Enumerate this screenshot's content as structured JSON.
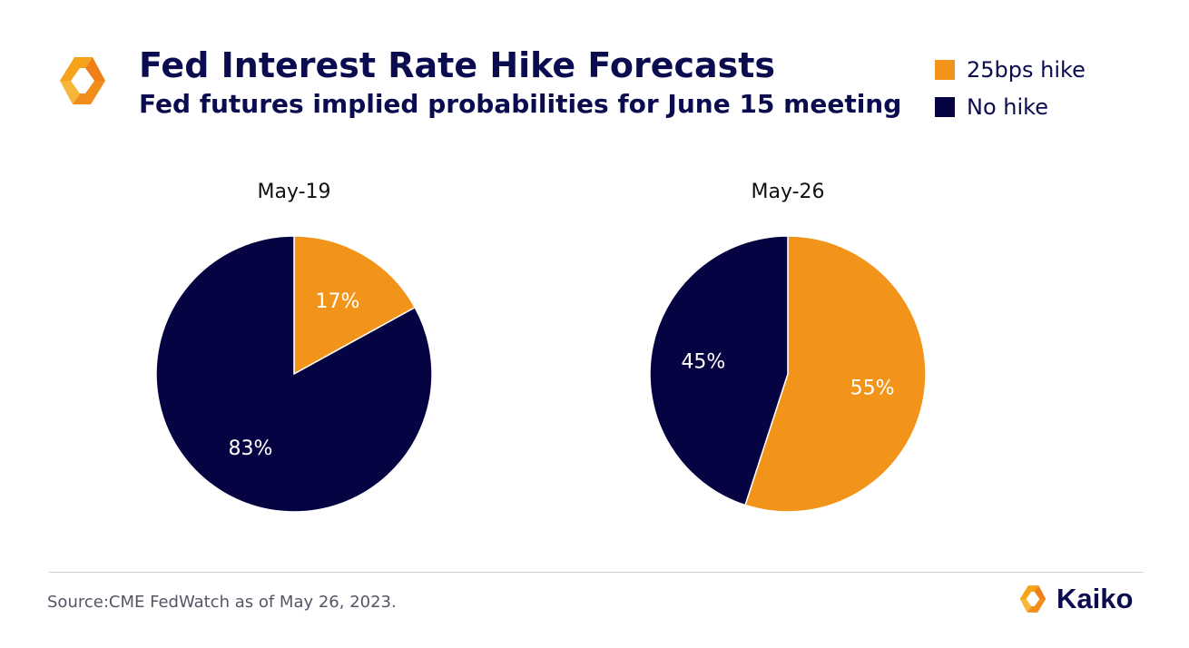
{
  "header": {
    "title": "Fed Interest Rate Hike Forecasts",
    "subtitle": "Fed futures implied probabilities for June 15 meeting"
  },
  "legend": [
    {
      "label": "25bps hike",
      "color": "#f29419"
    },
    {
      "label": "No hike",
      "color": "#050342"
    }
  ],
  "chart_data": [
    {
      "type": "pie",
      "title": "May-19",
      "start": "12 o'clock",
      "direction": "clockwise",
      "slices": [
        {
          "name": "25bps hike",
          "value": 17,
          "label": "17%",
          "color": "#f29419"
        },
        {
          "name": "No hike",
          "value": 83,
          "label": "83%",
          "color": "#050342"
        }
      ]
    },
    {
      "type": "pie",
      "title": "May-26",
      "start": "12 o'clock",
      "direction": "clockwise",
      "slices": [
        {
          "name": "25bps hike",
          "value": 55,
          "label": "55%",
          "color": "#f29419"
        },
        {
          "name": "No hike",
          "value": 45,
          "label": "45%",
          "color": "#050342"
        }
      ]
    }
  ],
  "footer": {
    "source": "Source:CME FedWatch as of May 26, 2023.",
    "brand": "Kaiko"
  }
}
